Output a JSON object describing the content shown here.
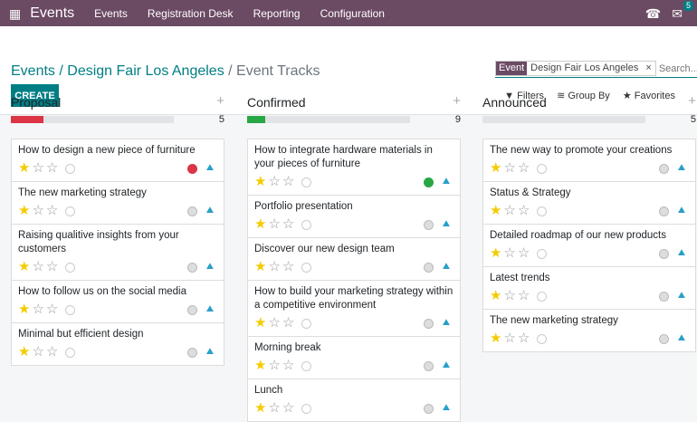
{
  "nav": {
    "app": "Events",
    "items": [
      "Events",
      "Registration Desk",
      "Reporting",
      "Configuration"
    ],
    "chat_count": "5"
  },
  "breadcrumb": {
    "root": "Events",
    "event": "Design Fair Los Angeles",
    "current": "Event Tracks"
  },
  "create_label": "CREATE",
  "search": {
    "facet_key": "Event",
    "facet_value": "Design Fair Los Angeles",
    "placeholder": "Search..."
  },
  "filters": {
    "filters": "Filters",
    "group_by": "Group By",
    "favorites": "Favorites"
  },
  "columns": [
    {
      "title": "Proposal",
      "count": "5",
      "progress_color": "#dc3545",
      "progress": 0.2,
      "cards": [
        {
          "title": "How to design a new piece of furniture",
          "stars": 1,
          "status": "red"
        },
        {
          "title": "The new marketing strategy",
          "stars": 1,
          "status": "grey"
        },
        {
          "title": "Raising qualitive insights from your customers",
          "stars": 1,
          "status": "grey"
        },
        {
          "title": "How to follow us on the social media",
          "stars": 1,
          "status": "grey"
        },
        {
          "title": "Minimal but efficient design",
          "stars": 1,
          "status": "grey"
        }
      ]
    },
    {
      "title": "Confirmed",
      "count": "9",
      "progress_color": "#28a745",
      "progress": 0.11,
      "cards": [
        {
          "title": "How to integrate hardware materials in your pieces of furniture",
          "stars": 1,
          "status": "green"
        },
        {
          "title": "Portfolio presentation",
          "stars": 1,
          "status": "grey"
        },
        {
          "title": "Discover our new design team",
          "stars": 1,
          "status": "grey"
        },
        {
          "title": "How to build your marketing strategy within a competitive environment",
          "stars": 1,
          "status": "grey"
        },
        {
          "title": "Morning break",
          "stars": 1,
          "status": "grey"
        },
        {
          "title": "Lunch",
          "stars": 1,
          "status": "grey"
        }
      ]
    },
    {
      "title": "Announced",
      "count": "5",
      "progress_color": "#28a745",
      "progress": 0,
      "cards": [
        {
          "title": "The new way to promote your creations",
          "stars": 1,
          "status": "grey"
        },
        {
          "title": "Status & Strategy",
          "stars": 1,
          "status": "grey"
        },
        {
          "title": "Detailed roadmap of our new products",
          "stars": 1,
          "status": "grey"
        },
        {
          "title": "Latest trends",
          "stars": 1,
          "status": "grey"
        },
        {
          "title": "The new marketing strategy",
          "stars": 1,
          "status": "grey"
        }
      ]
    }
  ]
}
